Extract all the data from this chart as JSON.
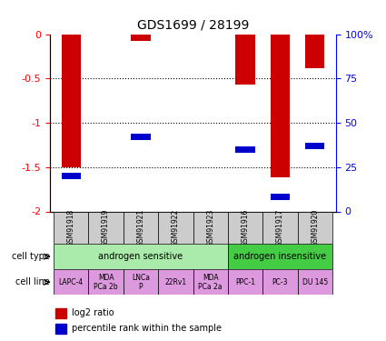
{
  "title": "GDS1699 / 28199",
  "samples": [
    "GSM91918",
    "GSM91919",
    "GSM91921",
    "GSM91922",
    "GSM91923",
    "GSM91916",
    "GSM91917",
    "GSM91920"
  ],
  "log2_ratio": [
    -1.5,
    0,
    -0.08,
    0,
    0,
    -0.57,
    -1.62,
    -0.38
  ],
  "percentile_rank": [
    20,
    0,
    42,
    0,
    0,
    35,
    8,
    37
  ],
  "ylim_left": [
    -2,
    0
  ],
  "ylim_right": [
    0,
    100
  ],
  "yticks_left": [
    -2,
    -1.5,
    -1,
    -0.5,
    0
  ],
  "yticks_right_vals": [
    0,
    25,
    50,
    75,
    100
  ],
  "yticks_right_labels": [
    "0",
    "25",
    "50",
    "75",
    "100%"
  ],
  "bar_color": "#cc0000",
  "pct_color": "#0000cc",
  "cell_type_groups": [
    {
      "label": "androgen sensitive",
      "start": 0,
      "end": 5,
      "color": "#aaeaaa"
    },
    {
      "label": "androgen insensitive",
      "start": 5,
      "end": 8,
      "color": "#44cc44"
    }
  ],
  "cell_lines": [
    "LAPC-4",
    "MDA\nPCa 2b",
    "LNCa\nP",
    "22Rv1",
    "MDA\nPCa 2a",
    "PPC-1",
    "PC-3",
    "DU 145"
  ],
  "cell_line_color": "#dd99dd",
  "legend_log2_color": "#cc0000",
  "legend_pct_color": "#0000cc"
}
